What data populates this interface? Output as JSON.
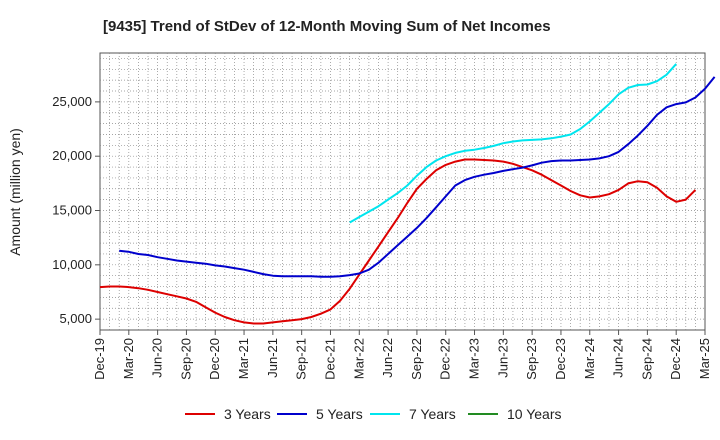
{
  "chart_data": {
    "type": "line",
    "title": "[9435]  Trend of StDev of 12-Month Moving Sum of Net Incomes",
    "ylabel": "Amount (million yen)",
    "xlabel": "",
    "ylim": [
      4000,
      29500
    ],
    "yticks": [
      5000,
      10000,
      15000,
      20000,
      25000
    ],
    "ytick_labels": [
      "5,000",
      "10,000",
      "15,000",
      "20,000",
      "25,000"
    ],
    "x_start": "2019-12",
    "xtick_labels": [
      "Dec-19",
      "Mar-20",
      "Jun-20",
      "Sep-20",
      "Dec-20",
      "Mar-21",
      "Jun-21",
      "Sep-21",
      "Dec-21",
      "Mar-22",
      "Jun-22",
      "Sep-22",
      "Dec-22",
      "Mar-23",
      "Jun-23",
      "Sep-23",
      "Dec-23",
      "Mar-24",
      "Jun-24",
      "Sep-24",
      "Dec-24",
      "Mar-25"
    ],
    "grid": true,
    "legend_position": "bottom",
    "series": [
      {
        "name": "3 Years",
        "color": "#dd0000",
        "start": "2019-12",
        "values": [
          7950,
          8000,
          8000,
          7950,
          7850,
          7700,
          7500,
          7300,
          7100,
          6900,
          6600,
          6100,
          5600,
          5200,
          4900,
          4700,
          4600,
          4600,
          4700,
          4800,
          4900,
          5000,
          5200,
          5500,
          5900,
          6700,
          7800,
          9100,
          10400,
          11700,
          13000,
          14300,
          15700,
          17000,
          17900,
          18700,
          19200,
          19500,
          19700,
          19700,
          19650,
          19600,
          19500,
          19300,
          19000,
          18700,
          18300,
          17800,
          17300,
          16800,
          16400,
          16200,
          16300,
          16500,
          16900,
          17500,
          17700,
          17600,
          17100,
          16300,
          15800,
          16000,
          16900
        ]
      },
      {
        "name": "5 Years",
        "color": "#0000cc",
        "start": "2020-02",
        "values": [
          11300,
          11200,
          11000,
          10900,
          10700,
          10550,
          10400,
          10300,
          10200,
          10100,
          9950,
          9850,
          9700,
          9550,
          9350,
          9150,
          9000,
          8950,
          8950,
          8950,
          8950,
          8900,
          8900,
          8950,
          9050,
          9200,
          9550,
          10200,
          11000,
          11800,
          12600,
          13400,
          14300,
          15300,
          16300,
          17300,
          17800,
          18100,
          18300,
          18450,
          18650,
          18800,
          18950,
          19150,
          19400,
          19550,
          19600,
          19600,
          19650,
          19700,
          19800,
          20000,
          20400,
          21100,
          21900,
          22800,
          23800,
          24500,
          24800,
          24950,
          25400,
          26200,
          27300
        ]
      },
      {
        "name": "7 Years",
        "color": "#00e5ee",
        "start": "2022-02",
        "values": [
          13900,
          14400,
          14900,
          15400,
          16000,
          16600,
          17300,
          18200,
          19000,
          19600,
          20000,
          20300,
          20500,
          20600,
          20750,
          20950,
          21200,
          21350,
          21450,
          21500,
          21550,
          21650,
          21800,
          22000,
          22500,
          23200,
          24000,
          24800,
          25700,
          26300,
          26550,
          26600,
          26900,
          27500,
          28500
        ]
      },
      {
        "name": "10 Years",
        "color": "#228b22",
        "start": "2024-12",
        "values": []
      }
    ]
  }
}
